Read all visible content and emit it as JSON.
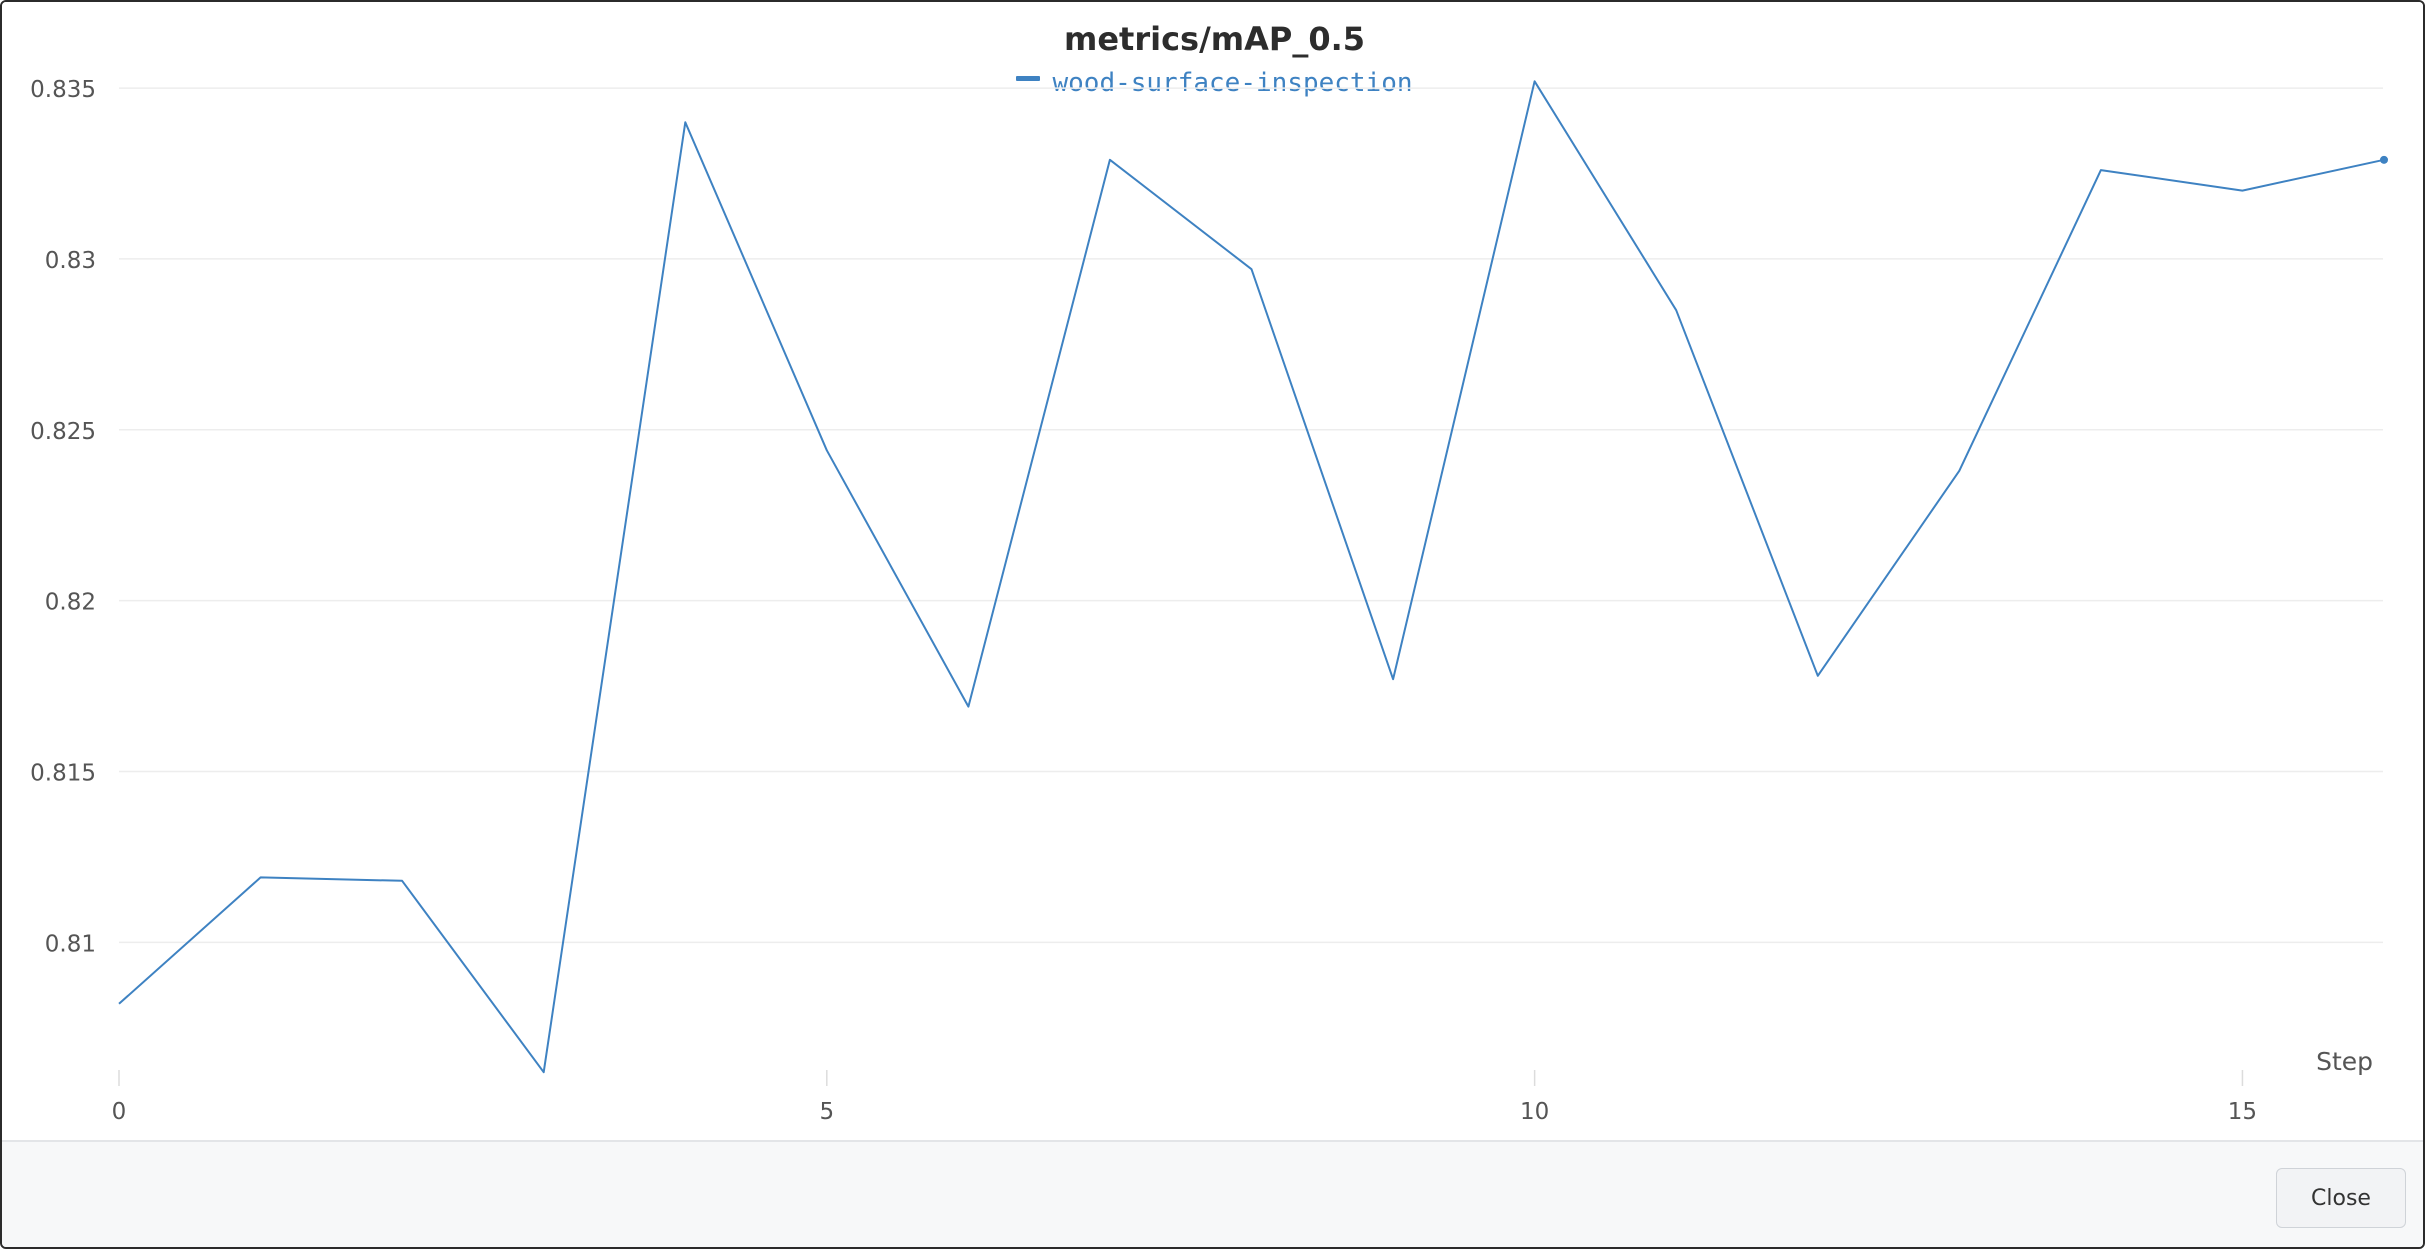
{
  "chart_data": {
    "type": "line",
    "title": "metrics/mAP_0.5",
    "xlabel": "Step",
    "ylabel": "",
    "xlim": [
      0,
      16
    ],
    "ylim": [
      0.806,
      0.8355
    ],
    "x_ticks": [
      0,
      5,
      10,
      15
    ],
    "y_ticks": [
      0.81,
      0.815,
      0.82,
      0.825,
      0.83,
      0.835
    ],
    "x_tick_labels": [
      "0",
      "5",
      "10",
      "15"
    ],
    "y_tick_labels": [
      "0.81",
      "0.815",
      "0.82",
      "0.825",
      "0.83",
      "0.835"
    ],
    "grid": "horizontal",
    "legend_position": "top-center",
    "series": [
      {
        "name": "wood-surface-inspection",
        "color": "#3e82c2",
        "x": [
          0,
          1,
          2,
          3,
          4,
          5,
          6,
          7,
          8,
          9,
          10,
          11,
          12,
          13,
          14,
          15,
          16
        ],
        "values": [
          0.8082,
          0.8119,
          0.8118,
          0.8062,
          0.834,
          0.8244,
          0.8169,
          0.8329,
          0.8297,
          0.8177,
          0.8352,
          0.8285,
          0.8178,
          0.8238,
          0.8326,
          0.832,
          0.8329
        ]
      }
    ]
  },
  "footer": {
    "close_label": "Close"
  }
}
